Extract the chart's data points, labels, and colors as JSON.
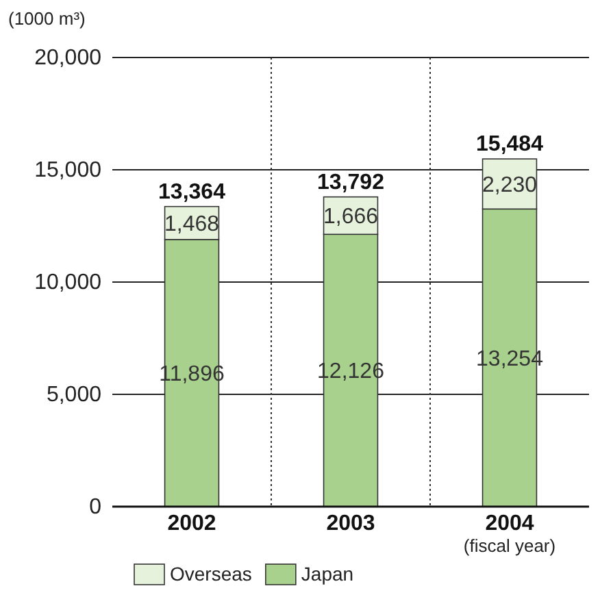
{
  "chart_data": {
    "type": "bar",
    "stacked": true,
    "categories": [
      "2002",
      "2003",
      "2004"
    ],
    "series": [
      {
        "name": "Japan",
        "color": "#a9d18e",
        "values": [
          11896,
          12126,
          13254
        ],
        "value_labels": [
          "11,896",
          "12,126",
          "13,254"
        ]
      },
      {
        "name": "Overseas",
        "color": "#e6f2dc",
        "values": [
          1468,
          1666,
          2230
        ],
        "value_labels": [
          "1,468",
          "1,666",
          "2,230"
        ]
      }
    ],
    "ylim": [
      0,
      20000
    ],
    "yticks": [
      0,
      {
        "value": 5000,
        "label": "5,000"
      },
      {
        "value": 10000,
        "label": "10,000"
      },
      {
        "value": 15000,
        "label": "15,000"
      },
      {
        "value": 20000,
        "label": "20,000"
      }
    ],
    "ylabel": "(1000 m³)",
    "xlabel": "(fiscal year)",
    "grid": true,
    "totals": [
      "13,364",
      "13,792",
      "15,484"
    ],
    "legend": "bottom"
  }
}
